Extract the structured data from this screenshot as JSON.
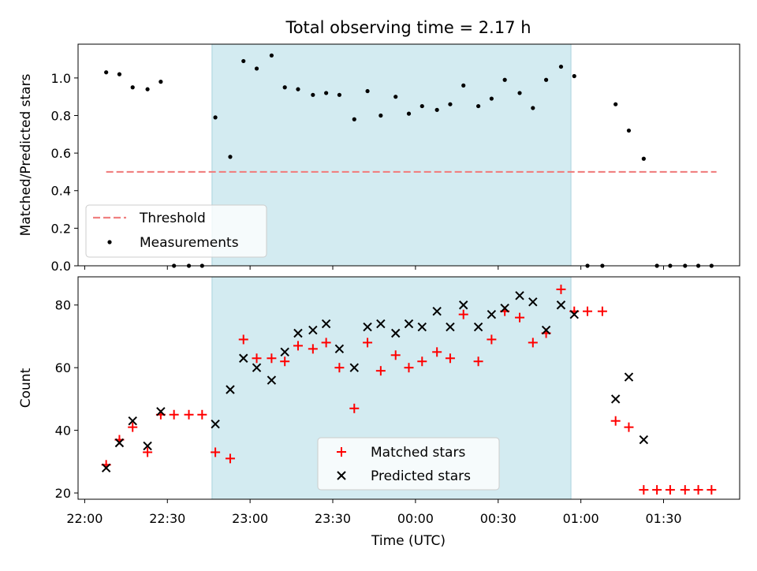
{
  "chart_data": {
    "title": "Total observing time = 2.17 h",
    "x_tick_labels": [
      "22:00",
      "22:30",
      "23:00",
      "23:30",
      "00:00",
      "00:30",
      "01:00",
      "01:30"
    ],
    "x_tick_hours": [
      22.0,
      22.5,
      23.0,
      23.5,
      24.0,
      24.5,
      25.0,
      25.5
    ],
    "xlabel": "Time (UTC)",
    "xlim_hours": [
      21.96,
      25.96
    ],
    "shaded_interval_hours": [
      22.77,
      24.94
    ],
    "colors": {
      "shade": "#d3ebf1",
      "threshold": "#f08080",
      "measurement": "#000000",
      "matched": "#ff0000",
      "predicted": "#000000"
    },
    "panels": [
      {
        "type": "scatter",
        "ylabel": "Matched/Predicted stars",
        "ylim": [
          0,
          1.18
        ],
        "y_ticks": [
          0.0,
          0.2,
          0.4,
          0.6,
          0.8,
          1.0
        ],
        "y_tick_labels": [
          "0.0",
          "0.2",
          "0.4",
          "0.6",
          "0.8",
          "1.0"
        ],
        "legend_position": "lower-left",
        "threshold": {
          "name": "Threshold",
          "value": 0.5,
          "x_range": [
            22.13,
            25.82
          ]
        },
        "measurements": {
          "name": "Measurements",
          "x": [
            22.13,
            22.21,
            22.29,
            22.38,
            22.46,
            22.54,
            22.63,
            22.71,
            22.79,
            22.88,
            22.96,
            23.04,
            23.13,
            23.21,
            23.29,
            23.38,
            23.46,
            23.54,
            23.63,
            23.71,
            23.79,
            23.88,
            23.96,
            24.04,
            24.13,
            24.21,
            24.29,
            24.38,
            24.46,
            24.54,
            24.63,
            24.71,
            24.79,
            24.88,
            24.96,
            25.04,
            25.13,
            25.21,
            25.29,
            25.38,
            25.46,
            25.54,
            25.63,
            25.71,
            25.79
          ],
          "y": [
            1.03,
            1.02,
            0.95,
            0.94,
            0.98,
            0.0,
            0.0,
            0.0,
            0.79,
            0.58,
            1.09,
            1.05,
            1.12,
            0.95,
            0.94,
            0.91,
            0.92,
            0.91,
            0.78,
            0.93,
            0.8,
            0.9,
            0.81,
            0.85,
            0.83,
            0.86,
            0.96,
            0.85,
            0.89,
            0.99,
            0.92,
            0.84,
            0.99,
            1.06,
            1.01,
            0.0,
            0.0,
            0.86,
            0.72,
            0.57,
            0.0,
            0.0,
            0.0,
            0.0,
            0.0
          ]
        }
      },
      {
        "type": "scatter",
        "ylabel": "Count",
        "ylim": [
          18,
          89
        ],
        "y_ticks": [
          20,
          40,
          60,
          80
        ],
        "y_tick_labels": [
          "20",
          "40",
          "60",
          "80"
        ],
        "legend_position": "lower-center",
        "series": [
          {
            "name": "Matched stars",
            "marker": "plus",
            "x": [
              22.13,
              22.21,
              22.29,
              22.38,
              22.46,
              22.54,
              22.63,
              22.71,
              22.79,
              22.88,
              22.96,
              23.04,
              23.13,
              23.21,
              23.29,
              23.38,
              23.46,
              23.54,
              23.63,
              23.71,
              23.79,
              23.88,
              23.96,
              24.04,
              24.13,
              24.21,
              24.29,
              24.38,
              24.46,
              24.54,
              24.63,
              24.71,
              24.79,
              24.88,
              24.96,
              25.04,
              25.13,
              25.21,
              25.29,
              25.38,
              25.46,
              25.54,
              25.63,
              25.71,
              25.79
            ],
            "y": [
              29,
              37,
              41,
              33,
              45,
              45,
              45,
              45,
              33,
              31,
              69,
              63,
              63,
              62,
              67,
              66,
              68,
              60,
              47,
              68,
              59,
              64,
              60,
              62,
              65,
              63,
              77,
              62,
              69,
              78,
              76,
              68,
              71,
              85,
              78,
              78,
              78,
              43,
              41,
              21,
              21,
              21,
              21,
              21,
              21
            ]
          },
          {
            "name": "Predicted stars",
            "marker": "x",
            "x": [
              22.13,
              22.21,
              22.29,
              22.38,
              22.46,
              22.79,
              22.88,
              22.96,
              23.04,
              23.13,
              23.21,
              23.29,
              23.38,
              23.46,
              23.54,
              23.63,
              23.71,
              23.79,
              23.88,
              23.96,
              24.04,
              24.13,
              24.21,
              24.29,
              24.38,
              24.46,
              24.54,
              24.63,
              24.71,
              24.79,
              24.88,
              24.96,
              25.21,
              25.29,
              25.38
            ],
            "y": [
              28,
              36,
              43,
              35,
              46,
              42,
              53,
              63,
              60,
              56,
              65,
              71,
              72,
              74,
              66,
              60,
              73,
              74,
              71,
              74,
              73,
              78,
              73,
              80,
              73,
              77,
              79,
              83,
              81,
              72,
              80,
              77,
              50,
              57,
              37
            ]
          }
        ]
      }
    ]
  }
}
